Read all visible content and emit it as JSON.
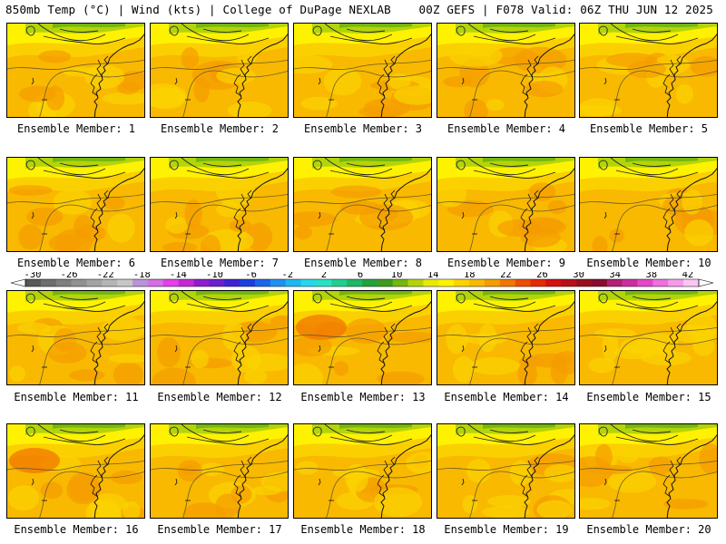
{
  "header": {
    "left": "850mb Temp (°C) | Wind (kts) | College of DuPage NEXLAB",
    "right": "00Z GEFS | F078 Valid: 06Z THU JUN 12 2025"
  },
  "colorbar": {
    "labels": [
      "-30",
      "-26",
      "-22",
      "-18",
      "-14",
      "-10",
      "-6",
      "-2",
      "2",
      "6",
      "10",
      "14",
      "18",
      "22",
      "26",
      "30",
      "34",
      "38",
      "42"
    ],
    "colors": [
      "#585858",
      "#6e6e6e",
      "#7f7f7f",
      "#919191",
      "#a3a3a3",
      "#b5b5b5",
      "#c7c7c7",
      "#b993d8",
      "#d46ee6",
      "#e43fe9",
      "#c627d6",
      "#8f1bd0",
      "#6a1fd0",
      "#3c24d4",
      "#1d3fe0",
      "#1a66ec",
      "#1c91f2",
      "#1cb8f2",
      "#22d8ee",
      "#27e2c5",
      "#20cf8f",
      "#1eb866",
      "#22a23c",
      "#3d9c1d",
      "#74b70f",
      "#b4d40a",
      "#e6ea05",
      "#fff200",
      "#fbd300",
      "#f8b900",
      "#f59c00",
      "#f27700",
      "#ee4d00",
      "#e62a00",
      "#d41010",
      "#b8101a",
      "#9a0e1e",
      "#8a0a30",
      "#b21e72",
      "#d02aa0",
      "#e446c8",
      "#ef6fde",
      "#f69aea",
      "#fbc6f4"
    ]
  },
  "members": [
    {
      "label": "Ensemble Member: 1"
    },
    {
      "label": "Ensemble Member: 2"
    },
    {
      "label": "Ensemble Member: 3"
    },
    {
      "label": "Ensemble Member: 4"
    },
    {
      "label": "Ensemble Member: 5"
    },
    {
      "label": "Ensemble Member: 6"
    },
    {
      "label": "Ensemble Member: 7"
    },
    {
      "label": "Ensemble Member: 8"
    },
    {
      "label": "Ensemble Member: 9"
    },
    {
      "label": "Ensemble Member: 10"
    },
    {
      "label": "Ensemble Member: 11"
    },
    {
      "label": "Ensemble Member: 12"
    },
    {
      "label": "Ensemble Member: 13"
    },
    {
      "label": "Ensemble Member: 14"
    },
    {
      "label": "Ensemble Member: 15"
    },
    {
      "label": "Ensemble Member: 16"
    },
    {
      "label": "Ensemble Member: 17"
    },
    {
      "label": "Ensemble Member: 18"
    },
    {
      "label": "Ensemble Member: 19"
    },
    {
      "label": "Ensemble Member: 20"
    }
  ]
}
